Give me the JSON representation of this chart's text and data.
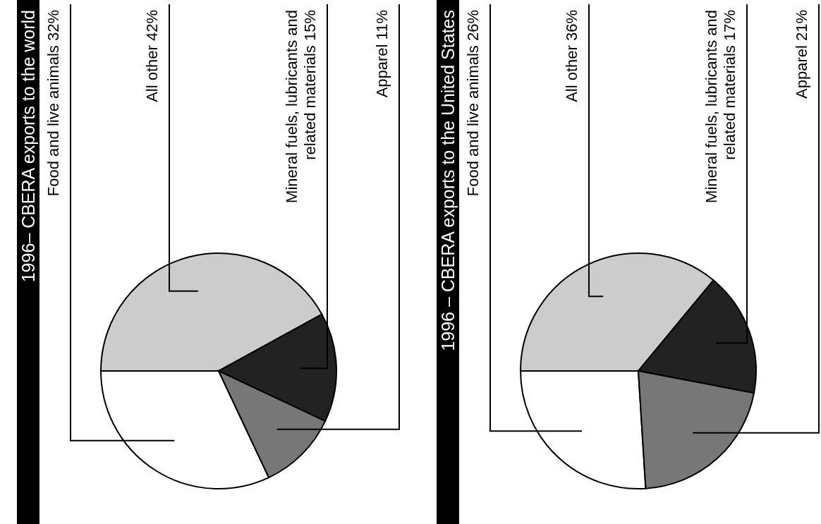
{
  "chart_data": [
    {
      "type": "pie",
      "title": "1996– CBERA exports to the world",
      "categories": [
        "Food and live animals 32%",
        "All other  42%",
        "Mineral fuels, lubricants and related materials  15%",
        "Apparel 11%"
      ],
      "values": [
        32,
        42,
        15,
        11
      ],
      "colors": [
        "#ffffff",
        "#cccccc",
        "#222222",
        "#777777"
      ]
    },
    {
      "type": "pie",
      "title": "1996 – CBERA exports to the United States",
      "categories": [
        "Food and live animals 26%",
        "All other  36%",
        "Mineral fuels, lubricants and related materials  17%",
        "Apparel 21%"
      ],
      "values": [
        26,
        36,
        17,
        21
      ],
      "colors": [
        "#ffffff",
        "#cccccc",
        "#222222",
        "#777777"
      ]
    }
  ]
}
